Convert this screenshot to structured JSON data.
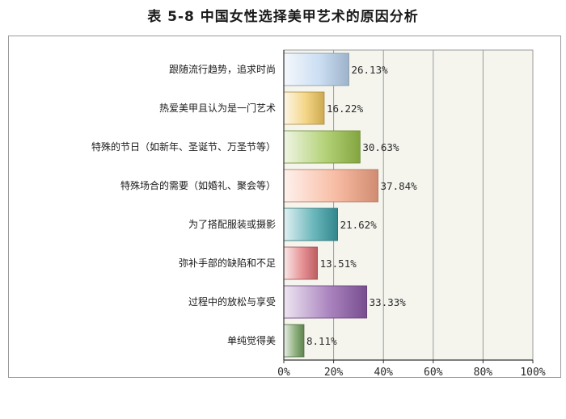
{
  "page": {
    "title": "表 5-8 中国女性选择美甲艺术的原因分析"
  },
  "chart_data": {
    "type": "bar",
    "orientation": "horizontal",
    "title": "表 5-8 中国女性选择美甲艺术的原因分析",
    "categories": [
      "跟随流行趋势，追求时尚",
      "热爱美甲且认为是一门艺术",
      "特殊的节日（如新年、圣诞节、万圣节等）",
      "特殊场合的需要（如婚礼、聚会等）",
      "为了搭配服装或摄影",
      "弥补手部的缺陷和不足",
      "过程中的放松与享受",
      "单纯觉得美"
    ],
    "values": [
      26.13,
      16.22,
      30.63,
      37.84,
      21.62,
      13.51,
      33.33,
      8.11
    ],
    "value_labels": [
      "26.13%",
      "16.22%",
      "30.63%",
      "37.84%",
      "21.62%",
      "13.51%",
      "33.33%",
      "8.11%"
    ],
    "bar_colors": [
      "#b9d3ee",
      "#f0c75e",
      "#9ac24a",
      "#f5a585",
      "#3a9fa5",
      "#dd6e72",
      "#8d5ba8",
      "#6e9a5a"
    ],
    "xlim": [
      0,
      100
    ],
    "x_ticks": [
      "0%",
      "20%",
      "40%",
      "60%",
      "80%",
      "100%"
    ],
    "x_tick_values": [
      0,
      20,
      40,
      60,
      80,
      100
    ],
    "grid": true,
    "legend": false,
    "colors": {
      "plot_background": "#f5f5ee",
      "gridline": "#9a9a9a",
      "axis": "#333333"
    }
  }
}
